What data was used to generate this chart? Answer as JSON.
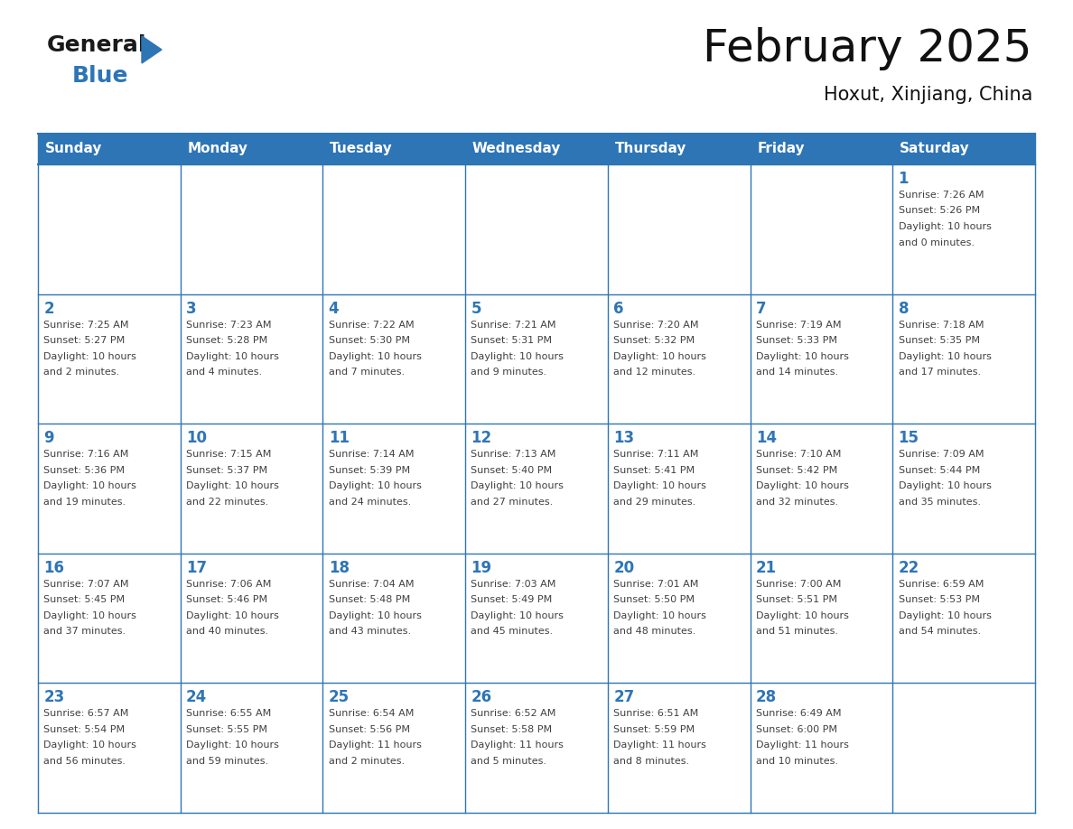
{
  "title": "February 2025",
  "subtitle": "Hoxut, Xinjiang, China",
  "header_bg_color": "#2E75B6",
  "header_text_color": "#FFFFFF",
  "cell_border_color": "#2E75B6",
  "day_number_color": "#2E75B6",
  "info_text_color": "#404040",
  "background_color": "#FFFFFF",
  "days_of_week": [
    "Sunday",
    "Monday",
    "Tuesday",
    "Wednesday",
    "Thursday",
    "Friday",
    "Saturday"
  ],
  "weeks": [
    [
      {
        "day": null,
        "info": ""
      },
      {
        "day": null,
        "info": ""
      },
      {
        "day": null,
        "info": ""
      },
      {
        "day": null,
        "info": ""
      },
      {
        "day": null,
        "info": ""
      },
      {
        "day": null,
        "info": ""
      },
      {
        "day": 1,
        "info": "Sunrise: 7:26 AM\nSunset: 5:26 PM\nDaylight: 10 hours\nand 0 minutes."
      }
    ],
    [
      {
        "day": 2,
        "info": "Sunrise: 7:25 AM\nSunset: 5:27 PM\nDaylight: 10 hours\nand 2 minutes."
      },
      {
        "day": 3,
        "info": "Sunrise: 7:23 AM\nSunset: 5:28 PM\nDaylight: 10 hours\nand 4 minutes."
      },
      {
        "day": 4,
        "info": "Sunrise: 7:22 AM\nSunset: 5:30 PM\nDaylight: 10 hours\nand 7 minutes."
      },
      {
        "day": 5,
        "info": "Sunrise: 7:21 AM\nSunset: 5:31 PM\nDaylight: 10 hours\nand 9 minutes."
      },
      {
        "day": 6,
        "info": "Sunrise: 7:20 AM\nSunset: 5:32 PM\nDaylight: 10 hours\nand 12 minutes."
      },
      {
        "day": 7,
        "info": "Sunrise: 7:19 AM\nSunset: 5:33 PM\nDaylight: 10 hours\nand 14 minutes."
      },
      {
        "day": 8,
        "info": "Sunrise: 7:18 AM\nSunset: 5:35 PM\nDaylight: 10 hours\nand 17 minutes."
      }
    ],
    [
      {
        "day": 9,
        "info": "Sunrise: 7:16 AM\nSunset: 5:36 PM\nDaylight: 10 hours\nand 19 minutes."
      },
      {
        "day": 10,
        "info": "Sunrise: 7:15 AM\nSunset: 5:37 PM\nDaylight: 10 hours\nand 22 minutes."
      },
      {
        "day": 11,
        "info": "Sunrise: 7:14 AM\nSunset: 5:39 PM\nDaylight: 10 hours\nand 24 minutes."
      },
      {
        "day": 12,
        "info": "Sunrise: 7:13 AM\nSunset: 5:40 PM\nDaylight: 10 hours\nand 27 minutes."
      },
      {
        "day": 13,
        "info": "Sunrise: 7:11 AM\nSunset: 5:41 PM\nDaylight: 10 hours\nand 29 minutes."
      },
      {
        "day": 14,
        "info": "Sunrise: 7:10 AM\nSunset: 5:42 PM\nDaylight: 10 hours\nand 32 minutes."
      },
      {
        "day": 15,
        "info": "Sunrise: 7:09 AM\nSunset: 5:44 PM\nDaylight: 10 hours\nand 35 minutes."
      }
    ],
    [
      {
        "day": 16,
        "info": "Sunrise: 7:07 AM\nSunset: 5:45 PM\nDaylight: 10 hours\nand 37 minutes."
      },
      {
        "day": 17,
        "info": "Sunrise: 7:06 AM\nSunset: 5:46 PM\nDaylight: 10 hours\nand 40 minutes."
      },
      {
        "day": 18,
        "info": "Sunrise: 7:04 AM\nSunset: 5:48 PM\nDaylight: 10 hours\nand 43 minutes."
      },
      {
        "day": 19,
        "info": "Sunrise: 7:03 AM\nSunset: 5:49 PM\nDaylight: 10 hours\nand 45 minutes."
      },
      {
        "day": 20,
        "info": "Sunrise: 7:01 AM\nSunset: 5:50 PM\nDaylight: 10 hours\nand 48 minutes."
      },
      {
        "day": 21,
        "info": "Sunrise: 7:00 AM\nSunset: 5:51 PM\nDaylight: 10 hours\nand 51 minutes."
      },
      {
        "day": 22,
        "info": "Sunrise: 6:59 AM\nSunset: 5:53 PM\nDaylight: 10 hours\nand 54 minutes."
      }
    ],
    [
      {
        "day": 23,
        "info": "Sunrise: 6:57 AM\nSunset: 5:54 PM\nDaylight: 10 hours\nand 56 minutes."
      },
      {
        "day": 24,
        "info": "Sunrise: 6:55 AM\nSunset: 5:55 PM\nDaylight: 10 hours\nand 59 minutes."
      },
      {
        "day": 25,
        "info": "Sunrise: 6:54 AM\nSunset: 5:56 PM\nDaylight: 11 hours\nand 2 minutes."
      },
      {
        "day": 26,
        "info": "Sunrise: 6:52 AM\nSunset: 5:58 PM\nDaylight: 11 hours\nand 5 minutes."
      },
      {
        "day": 27,
        "info": "Sunrise: 6:51 AM\nSunset: 5:59 PM\nDaylight: 11 hours\nand 8 minutes."
      },
      {
        "day": 28,
        "info": "Sunrise: 6:49 AM\nSunset: 6:00 PM\nDaylight: 11 hours\nand 10 minutes."
      },
      {
        "day": null,
        "info": ""
      }
    ]
  ],
  "logo_general_color": "#1a1a1a",
  "logo_blue_color": "#2E75B6",
  "logo_triangle_color": "#2E75B6",
  "title_fontsize": 36,
  "subtitle_fontsize": 15,
  "header_fontsize": 11,
  "day_num_fontsize": 12,
  "info_fontsize": 8
}
